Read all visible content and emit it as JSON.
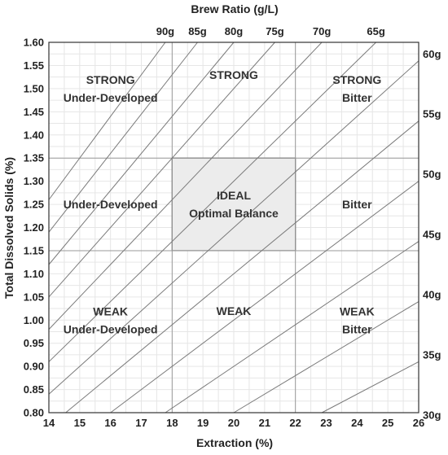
{
  "chart_data": {
    "type": "line",
    "title": "Brew Ratio (g/L)",
    "xlabel": "Extraction (%)",
    "ylabel": "Total Dissolved Solids (%)",
    "xlim": [
      14,
      26
    ],
    "ylim": [
      0.8,
      1.6
    ],
    "x_ticks": [
      "14",
      "15",
      "16",
      "17",
      "18",
      "19",
      "20",
      "21",
      "22",
      "23",
      "24",
      "25",
      "26"
    ],
    "y_ticks": [
      "0.80",
      "0.85",
      "0.90",
      "0.95",
      "1.00",
      "1.05",
      "1.10",
      "1.15",
      "1.20",
      "1.25",
      "1.30",
      "1.35",
      "1.40",
      "1.45",
      "1.50",
      "1.55",
      "1.60"
    ],
    "grid": true,
    "ratio_lines": [
      {
        "label": "90g",
        "ratio": 90
      },
      {
        "label": "85g",
        "ratio": 85
      },
      {
        "label": "80g",
        "ratio": 80
      },
      {
        "label": "75g",
        "ratio": 75
      },
      {
        "label": "70g",
        "ratio": 70
      },
      {
        "label": "65g",
        "ratio": 65
      },
      {
        "label": "60g",
        "ratio": 60
      },
      {
        "label": "55g",
        "ratio": 55
      },
      {
        "label": "50g",
        "ratio": 50
      },
      {
        "label": "45g",
        "ratio": 45
      },
      {
        "label": "40g",
        "ratio": 40
      },
      {
        "label": "35g",
        "ratio": 35
      },
      {
        "label": "30g",
        "ratio": 30
      }
    ],
    "ideal_box": {
      "x": [
        18,
        22
      ],
      "y": [
        1.15,
        1.35
      ]
    },
    "zone_dividers": {
      "x": [
        18,
        22
      ],
      "y": [
        1.15,
        1.35
      ]
    },
    "regions": [
      {
        "lines": [
          "STRONG",
          "Under-Developed"
        ],
        "x": 16,
        "y": 1.5
      },
      {
        "lines": [
          "STRONG"
        ],
        "x": 20,
        "y": 1.53
      },
      {
        "lines": [
          "STRONG",
          "Bitter"
        ],
        "x": 24,
        "y": 1.5
      },
      {
        "lines": [
          "Under-Developed"
        ],
        "x": 16,
        "y": 1.25
      },
      {
        "lines": [
          "IDEAL",
          "Optimal Balance"
        ],
        "x": 20,
        "y": 1.25
      },
      {
        "lines": [
          "Bitter"
        ],
        "x": 24,
        "y": 1.25
      },
      {
        "lines": [
          "WEAK",
          "Under-Developed"
        ],
        "x": 16,
        "y": 1.0
      },
      {
        "lines": [
          "WEAK"
        ],
        "x": 20,
        "y": 1.02
      },
      {
        "lines": [
          "WEAK",
          "Bitter"
        ],
        "x": 24,
        "y": 1.0
      }
    ],
    "colors": {
      "ratio_line": "#7a7a7a",
      "grid_minor": "#e6e6e6",
      "grid_major": "#9a9a9a",
      "ideal_fill": "#ececec",
      "ideal_stroke": "#555555",
      "axis": "#333333"
    }
  }
}
